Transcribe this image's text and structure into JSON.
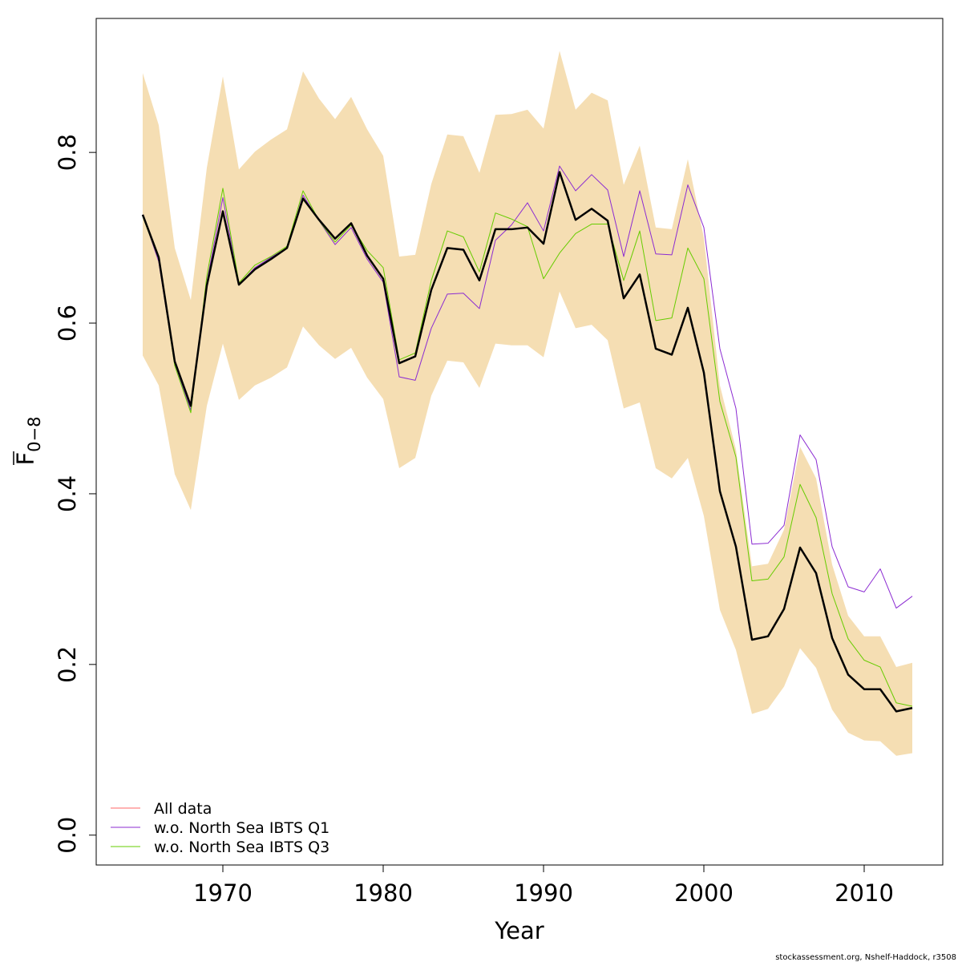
{
  "chart_data": {
    "type": "line",
    "xlabel": "Year",
    "ylabel_main": "F",
    "ylabel_sub": "0−8",
    "xlim": [
      1962.1,
      2014.9
    ],
    "ylim": [
      -0.035,
      0.957
    ],
    "x_ticks": [
      1970,
      1980,
      1990,
      2000,
      2010
    ],
    "x_tick_labels": [
      "1970",
      "1980",
      "1990",
      "2000",
      "2010"
    ],
    "y_ticks": [
      0.0,
      0.2,
      0.4,
      0.6,
      0.8
    ],
    "y_tick_labels": [
      "0.0",
      "0.2",
      "0.4",
      "0.6",
      "0.8"
    ],
    "grid": false,
    "legend_position": "bottom-left",
    "x": [
      1965,
      1966,
      1967,
      1968,
      1969,
      1970,
      1971,
      1972,
      1973,
      1974,
      1975,
      1976,
      1977,
      1978,
      1979,
      1980,
      1981,
      1982,
      1983,
      1984,
      1985,
      1986,
      1987,
      1988,
      1989,
      1990,
      1991,
      1992,
      1993,
      1994,
      1995,
      1996,
      1997,
      1998,
      1999,
      2000,
      2001,
      2002,
      2003,
      2004,
      2005,
      2006,
      2007,
      2008,
      2009,
      2010,
      2011,
      2012,
      2013
    ],
    "confidence_band": {
      "color": "#F5DEB3",
      "upper": [
        0.893,
        0.832,
        0.688,
        0.627,
        0.782,
        0.889,
        0.78,
        0.801,
        0.815,
        0.827,
        0.895,
        0.863,
        0.839,
        0.865,
        0.827,
        0.796,
        0.678,
        0.68,
        0.763,
        0.821,
        0.819,
        0.776,
        0.844,
        0.845,
        0.85,
        0.828,
        0.919,
        0.85,
        0.87,
        0.861,
        0.762,
        0.808,
        0.712,
        0.71,
        0.792,
        0.7,
        0.527,
        0.452,
        0.315,
        0.318,
        0.358,
        0.455,
        0.418,
        0.317,
        0.257,
        0.233,
        0.233,
        0.197,
        0.202
      ],
      "lower": [
        0.562,
        0.527,
        0.423,
        0.381,
        0.503,
        0.576,
        0.51,
        0.527,
        0.536,
        0.548,
        0.596,
        0.574,
        0.558,
        0.571,
        0.536,
        0.511,
        0.43,
        0.442,
        0.515,
        0.556,
        0.554,
        0.524,
        0.576,
        0.574,
        0.574,
        0.56,
        0.637,
        0.594,
        0.598,
        0.58,
        0.5,
        0.507,
        0.43,
        0.418,
        0.442,
        0.374,
        0.264,
        0.217,
        0.142,
        0.148,
        0.174,
        0.219,
        0.196,
        0.147,
        0.12,
        0.111,
        0.11,
        0.093,
        0.096
      ]
    },
    "series": [
      {
        "name": "All data",
        "legend_color": "#FF6666",
        "color": "#000000",
        "width": 2.5,
        "values": [
          0.727,
          0.677,
          0.555,
          0.503,
          0.644,
          0.731,
          0.645,
          0.663,
          0.675,
          0.688,
          0.746,
          0.721,
          0.699,
          0.717,
          0.679,
          0.652,
          0.553,
          0.561,
          0.639,
          0.688,
          0.686,
          0.65,
          0.71,
          0.71,
          0.712,
          0.693,
          0.777,
          0.721,
          0.734,
          0.72,
          0.629,
          0.657,
          0.57,
          0.563,
          0.618,
          0.542,
          0.403,
          0.338,
          0.229,
          0.233,
          0.265,
          0.337,
          0.307,
          0.231,
          0.188,
          0.171,
          0.171,
          0.145,
          0.149
        ]
      },
      {
        "name": "w.o. North Sea IBTS Q1",
        "legend_color": "#8B2BD2",
        "color": "#8B2BD2",
        "width": 1,
        "values": [
          0.727,
          0.672,
          0.552,
          0.498,
          0.648,
          0.747,
          0.645,
          0.665,
          0.677,
          0.688,
          0.75,
          0.72,
          0.692,
          0.712,
          0.675,
          0.648,
          0.537,
          0.533,
          0.594,
          0.634,
          0.635,
          0.617,
          0.697,
          0.715,
          0.741,
          0.708,
          0.784,
          0.755,
          0.774,
          0.756,
          0.678,
          0.755,
          0.681,
          0.68,
          0.762,
          0.712,
          0.57,
          0.5,
          0.341,
          0.342,
          0.363,
          0.469,
          0.44,
          0.338,
          0.291,
          0.285,
          0.312,
          0.266,
          0.28
        ]
      },
      {
        "name": "w.o. North Sea IBTS Q3",
        "legend_color": "#66CC00",
        "color": "#66CC00",
        "width": 1,
        "values": [
          0.725,
          0.675,
          0.55,
          0.495,
          0.655,
          0.758,
          0.647,
          0.668,
          0.678,
          0.69,
          0.755,
          0.72,
          0.695,
          0.715,
          0.685,
          0.665,
          0.557,
          0.565,
          0.65,
          0.708,
          0.701,
          0.66,
          0.729,
          0.722,
          0.713,
          0.652,
          0.682,
          0.705,
          0.716,
          0.716,
          0.65,
          0.708,
          0.603,
          0.606,
          0.688,
          0.652,
          0.508,
          0.443,
          0.298,
          0.3,
          0.326,
          0.411,
          0.372,
          0.283,
          0.23,
          0.205,
          0.197,
          0.155,
          0.151
        ]
      }
    ]
  },
  "footer": "stockassessment.org, Nshelf-Haddock, r3508"
}
